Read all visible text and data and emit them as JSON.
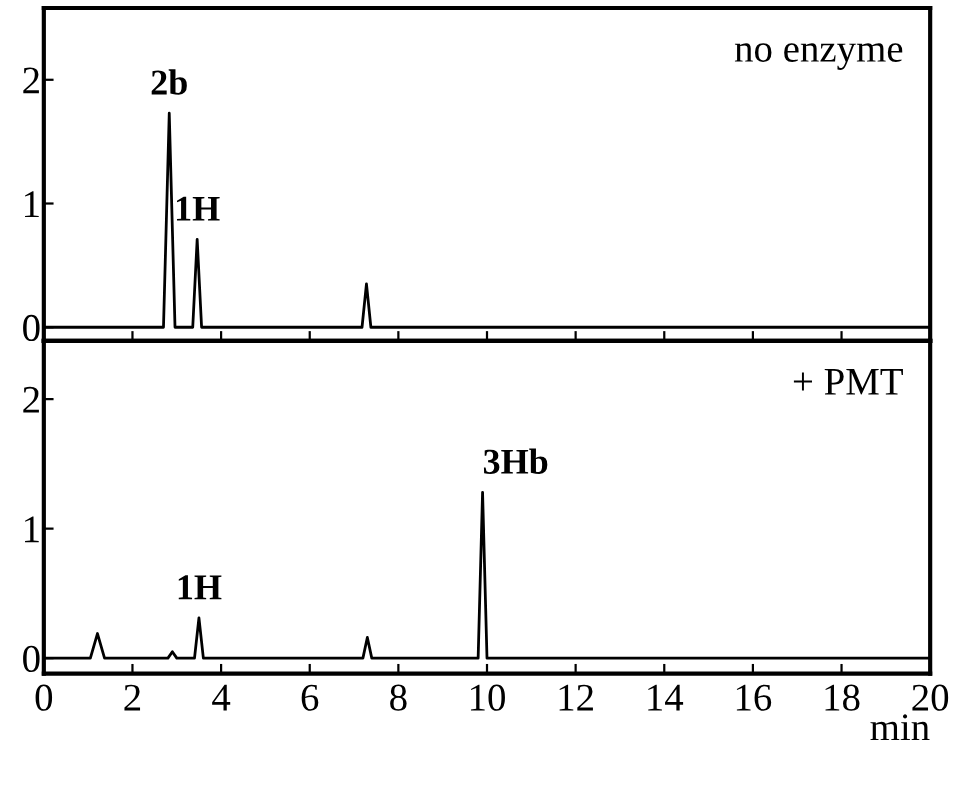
{
  "chart_data": [
    {
      "type": "line",
      "x": [
        0,
        2.7,
        2.83,
        2.96,
        3.36,
        3.46,
        3.56,
        7.18,
        7.28,
        7.38,
        20
      ],
      "values": [
        0,
        0,
        1.73,
        0,
        0,
        0.71,
        0,
        0,
        0.35,
        0,
        0
      ],
      "color": "#000000",
      "xlim": [
        0,
        20
      ],
      "ylim": [
        -0.11,
        2.58
      ],
      "xticks": [
        0,
        2,
        4,
        6,
        8,
        10,
        12,
        14,
        16,
        18,
        20
      ],
      "yticks": [
        0,
        1,
        2
      ],
      "tick_labels": "y",
      "grid": false,
      "legend": false,
      "annotations": [
        {
          "text": "2b",
          "x": 2.83,
          "y": 1.73
        },
        {
          "text": "1H",
          "x": 3.46,
          "y": 0.71
        },
        "no enzyme"
      ]
    },
    {
      "type": "line",
      "x": [
        0,
        1.05,
        1.21,
        1.37,
        2.8,
        2.9,
        3.0,
        3.4,
        3.5,
        3.6,
        7.2,
        7.3,
        7.4,
        9.8,
        9.9,
        10.0,
        20
      ],
      "values": [
        0,
        0,
        0.19,
        0,
        0,
        0.05,
        0,
        0,
        0.31,
        0,
        0,
        0.16,
        0,
        0,
        1.28,
        0,
        0
      ],
      "color": "#000000",
      "xlim": [
        0,
        20
      ],
      "ylim": [
        -0.12,
        2.45
      ],
      "xticks": [
        0,
        2,
        4,
        6,
        8,
        10,
        12,
        14,
        16,
        18,
        20
      ],
      "yticks": [
        0,
        1,
        2
      ],
      "xlabel": "min",
      "grid": false,
      "legend": false,
      "annotations": [
        {
          "text": "1H",
          "x": 3.5,
          "y": 0.31
        },
        {
          "text": "3Hb",
          "x": 9.9,
          "y": 1.28
        },
        "+ PMT"
      ]
    }
  ]
}
